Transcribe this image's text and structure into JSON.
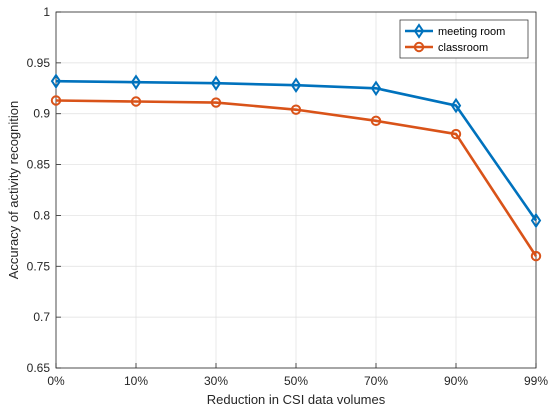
{
  "chart_data": {
    "type": "line",
    "categories": [
      "0%",
      "10%",
      "30%",
      "50%",
      "70%",
      "90%",
      "99%"
    ],
    "series": [
      {
        "name": "meeting room",
        "color": "#0072BD",
        "marker": "diamond",
        "values": [
          0.932,
          0.931,
          0.93,
          0.928,
          0.925,
          0.908,
          0.795
        ]
      },
      {
        "name": "classroom",
        "color": "#D95319",
        "marker": "circle",
        "values": [
          0.913,
          0.912,
          0.911,
          0.904,
          0.893,
          0.88,
          0.76
        ]
      }
    ],
    "xlabel": "Reduction in CSI data volumes",
    "ylabel": "Accuracy of activity recognition",
    "ylim": [
      0.65,
      1.0
    ],
    "yticks": [
      "0.65",
      "0.7",
      "0.75",
      "0.8",
      "0.85",
      "0.9",
      "0.95",
      "1"
    ],
    "grid": true,
    "legend_position": "top-right"
  }
}
